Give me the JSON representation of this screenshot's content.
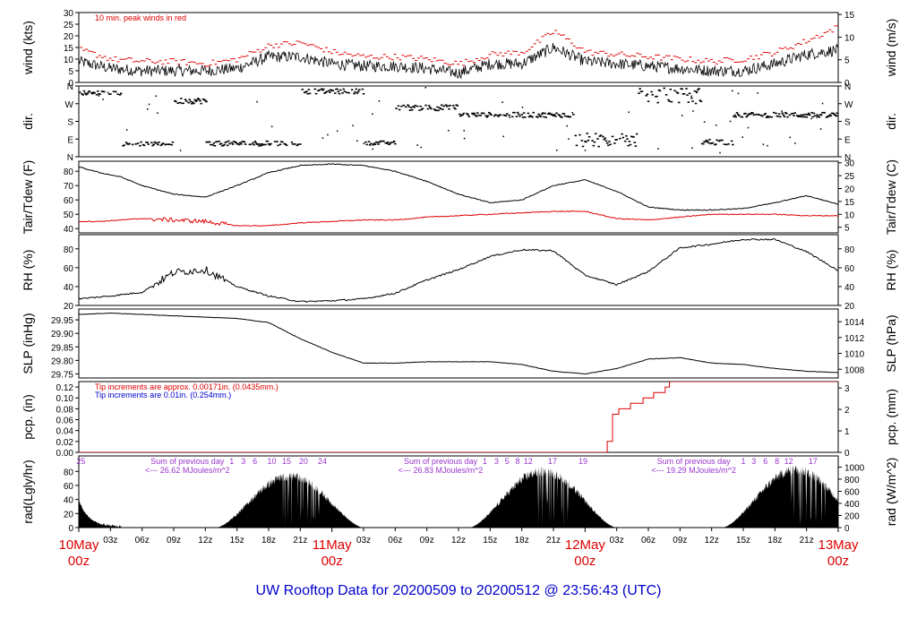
{
  "title": "UW Rooftop Data for 20200509  to  20200512 @ 23:56:43  (UTC)",
  "colors": {
    "title": "#0000cc",
    "date": "#dd0000",
    "tair": "#000000",
    "tdew": "#dd0000",
    "peak": "#dd0000",
    "note_red": "#dd0000",
    "note_blue": "#0000cc",
    "purple": "#9933cc"
  },
  "time": {
    "hour_ticks": [
      "03z",
      "06z",
      "09z",
      "12z",
      "15z",
      "18z",
      "21z"
    ],
    "days": [
      {
        "date": "10May",
        "z": "00z"
      },
      {
        "date": "11May",
        "z": "00z"
      },
      {
        "date": "12May",
        "z": "00z"
      },
      {
        "date": "13May",
        "z": "00z"
      }
    ]
  },
  "chart_data": [
    {
      "id": "wind",
      "type": "line",
      "ylabel": "wind (kts)",
      "ylabel_right": "wind (m/s)",
      "ylim": [
        0,
        30
      ],
      "yticks": [
        "0",
        "5",
        "10",
        "15",
        "20",
        "25",
        "30"
      ],
      "ylim_right": [
        0,
        15.43
      ],
      "yticks_right": [
        "0",
        "5",
        "10",
        "15"
      ],
      "annotation": "10 min. peak winds in red",
      "series": [
        {
          "x": [
            0,
            3,
            6,
            9,
            12,
            15,
            18,
            21,
            24,
            27,
            30,
            33,
            36,
            39,
            42,
            45,
            48,
            51,
            54,
            57,
            60,
            63,
            66,
            69,
            72
          ],
          "values": [
            9,
            6,
            5,
            5,
            5,
            6,
            11,
            11,
            8,
            7,
            7,
            6,
            4,
            8,
            8,
            15,
            9,
            8,
            7,
            6,
            5,
            5,
            8,
            12,
            14
          ]
        }
      ],
      "peaks": {
        "x": [
          0,
          3,
          6,
          9,
          12,
          15,
          18,
          21,
          24,
          27,
          30,
          33,
          36,
          39,
          42,
          45,
          48,
          51,
          54,
          57,
          60,
          63,
          66,
          69,
          72
        ],
        "values": [
          14,
          10,
          9,
          9,
          8,
          10,
          16,
          17,
          13,
          11,
          11,
          10,
          8,
          12,
          13,
          22,
          13,
          12,
          11,
          10,
          9,
          10,
          13,
          18,
          24
        ]
      }
    },
    {
      "id": "dir",
      "type": "scatter",
      "ylabel": "dir.",
      "ylabel_right": "dir.",
      "ylim": [
        0,
        360
      ],
      "yticks": [
        "N",
        "E",
        "S",
        "W",
        "N"
      ],
      "yticks_right": [
        "N",
        "E",
        "S",
        "W",
        "N"
      ],
      "segments": [
        {
          "x": [
            0,
            4
          ],
          "y": [
            315,
            335
          ]
        },
        {
          "x": [
            4,
            9
          ],
          "y": [
            55,
            75
          ]
        },
        {
          "x": [
            9,
            12
          ],
          "y": [
            270,
            300
          ]
        },
        {
          "x": [
            12,
            21
          ],
          "y": [
            55,
            80
          ]
        },
        {
          "x": [
            21,
            27
          ],
          "y": [
            320,
            345
          ]
        },
        {
          "x": [
            27,
            30
          ],
          "y": [
            60,
            80
          ]
        },
        {
          "x": [
            30,
            36
          ],
          "y": [
            235,
            265
          ]
        },
        {
          "x": [
            36,
            47
          ],
          "y": [
            200,
            225
          ]
        },
        {
          "x": [
            47,
            53
          ],
          "y": [
            50,
            120
          ]
        },
        {
          "x": [
            53,
            59
          ],
          "y": [
            270,
            350
          ]
        },
        {
          "x": [
            59,
            62
          ],
          "y": [
            60,
            90
          ]
        },
        {
          "x": [
            62,
            72
          ],
          "y": [
            200,
            225
          ]
        }
      ]
    },
    {
      "id": "temp",
      "type": "line",
      "ylabel": "Tair/Tdew (F)",
      "ylabel_right": "Tair/Tdew (C)",
      "ylim": [
        37,
        87
      ],
      "yticks": [
        "40",
        "50",
        "60",
        "70",
        "80"
      ],
      "ylim_right": [
        2.8,
        30.6
      ],
      "yticks_right": [
        "5",
        "10",
        "15",
        "20",
        "25",
        "30"
      ],
      "series": [
        {
          "name": "Tair",
          "x": [
            0,
            2,
            4,
            6,
            9,
            12,
            15,
            18,
            21,
            24,
            27,
            30,
            33,
            36,
            39,
            42,
            45,
            48,
            51,
            54,
            57,
            60,
            63,
            66,
            69,
            72
          ],
          "values": [
            83,
            79,
            76,
            70,
            64,
            62,
            70,
            79,
            84,
            85,
            84,
            80,
            73,
            64,
            58,
            60,
            70,
            74,
            66,
            55,
            53,
            53,
            54,
            58,
            63,
            57
          ]
        },
        {
          "name": "Tdew",
          "x": [
            0,
            2,
            4,
            6,
            9,
            12,
            15,
            18,
            21,
            24,
            27,
            30,
            33,
            36,
            39,
            42,
            45,
            48,
            51,
            54,
            57,
            60,
            63,
            66,
            69,
            72
          ],
          "values": [
            45,
            45,
            46,
            47,
            46,
            45,
            42,
            42,
            44,
            45,
            46,
            46,
            48,
            49,
            50,
            51,
            52,
            52,
            47,
            46,
            48,
            50,
            50,
            50,
            49,
            49
          ]
        }
      ]
    },
    {
      "id": "rh",
      "type": "line",
      "ylabel": "RH (%)",
      "ylabel_right": "RH (%)",
      "ylim": [
        20,
        95
      ],
      "yticks": [
        "20",
        "40",
        "60",
        "80"
      ],
      "yticks_right": [
        "20",
        "40",
        "60",
        "80"
      ],
      "series": [
        {
          "x": [
            0,
            3,
            6,
            9,
            12,
            15,
            18,
            21,
            24,
            27,
            30,
            33,
            36,
            39,
            42,
            45,
            48,
            51,
            54,
            57,
            60,
            63,
            66,
            69,
            72
          ],
          "values": [
            27,
            30,
            34,
            55,
            58,
            40,
            30,
            24,
            25,
            27,
            33,
            47,
            58,
            72,
            79,
            78,
            52,
            42,
            56,
            81,
            85,
            90,
            90,
            77,
            57
          ]
        }
      ]
    },
    {
      "id": "slp",
      "type": "line",
      "ylabel": "SLP (inHg)",
      "ylabel_right": "SLP (hPa)",
      "ylim": [
        29.735,
        29.99
      ],
      "yticks": [
        "29.75",
        "29.80",
        "29.85",
        "29.90",
        "29.95"
      ],
      "ylim_right": [
        1006.9,
        1015.6
      ],
      "yticks_right": [
        "1008",
        "1010",
        "1012",
        "1014"
      ],
      "series": [
        {
          "x": [
            0,
            3,
            6,
            9,
            12,
            15,
            18,
            21,
            24,
            27,
            30,
            33,
            36,
            39,
            42,
            45,
            48,
            51,
            54,
            57,
            60,
            63,
            66,
            69,
            72
          ],
          "values": [
            29.97,
            29.975,
            29.97,
            29.965,
            29.96,
            29.955,
            29.94,
            29.88,
            29.83,
            29.79,
            29.79,
            29.795,
            29.795,
            29.795,
            29.785,
            29.76,
            29.75,
            29.77,
            29.805,
            29.81,
            29.79,
            29.785,
            29.77,
            29.76,
            29.755
          ]
        }
      ]
    },
    {
      "id": "pcp",
      "type": "line",
      "ylabel": "pcp. (in)",
      "ylabel_right": "pcp. (mm)",
      "ylim": [
        0,
        0.13
      ],
      "yticks": [
        "0.00",
        "0.02",
        "0.04",
        "0.06",
        "0.08",
        "0.10",
        "0.12"
      ],
      "ylim_right": [
        0,
        3.3
      ],
      "yticks_right": [
        "0",
        "1",
        "2",
        "3"
      ],
      "notes": [
        "Tip increments are approx. 0.00171in. (0.0435mm.)",
        "Tip increments are 0.01in. (0.254mm.)"
      ],
      "series": [
        {
          "x": [
            0,
            49.7,
            50.1,
            50.6,
            51.2,
            52.3,
            53.5,
            54.5,
            55.6,
            56.0,
            72
          ],
          "values": [
            0,
            0,
            0.02,
            0.07,
            0.08,
            0.09,
            0.1,
            0.11,
            0.12,
            0.13,
            0.13
          ]
        }
      ]
    },
    {
      "id": "rad",
      "type": "area",
      "ylabel": "rad(Lgly/hr)",
      "ylabel_right": "rad (W/m^2)",
      "ylim": [
        0,
        102
      ],
      "yticks": [
        "0",
        "20",
        "40",
        "60",
        "80"
      ],
      "ylim_right": [
        0,
        1185
      ],
      "yticks_right": [
        "0",
        "200",
        "400",
        "600",
        "800",
        "1000"
      ],
      "day_sums": [
        {
          "x": 3.8,
          "label": "Sum of previous day",
          "value": "<--- 26.62 MJoules/m^2"
        },
        {
          "x": 27.8,
          "label": "Sum of previous day",
          "value": "<--- 26.83 MJoules/m^2"
        },
        {
          "x": 51.8,
          "label": "Sum of previous day",
          "value": "<--- 19.29 MJoules/m^2"
        }
      ],
      "hour_labels": [
        {
          "x": 0.2,
          "t": "25"
        },
        {
          "x": 14.5,
          "t": "1"
        },
        {
          "x": 15.6,
          "t": "3"
        },
        {
          "x": 16.7,
          "t": "6"
        },
        {
          "x": 18.3,
          "t": "10"
        },
        {
          "x": 19.7,
          "t": "15"
        },
        {
          "x": 21.3,
          "t": "20"
        },
        {
          "x": 23.1,
          "t": "24"
        },
        {
          "x": 38.5,
          "t": "1"
        },
        {
          "x": 39.6,
          "t": "3"
        },
        {
          "x": 40.6,
          "t": "5"
        },
        {
          "x": 41.6,
          "t": "8"
        },
        {
          "x": 42.6,
          "t": "12"
        },
        {
          "x": 44.9,
          "t": "17"
        },
        {
          "x": 47.8,
          "t": "19"
        },
        {
          "x": 63.0,
          "t": "1"
        },
        {
          "x": 64.0,
          "t": "3"
        },
        {
          "x": 65.1,
          "t": "6"
        },
        {
          "x": 66.2,
          "t": "8"
        },
        {
          "x": 67.3,
          "t": "12"
        },
        {
          "x": 69.6,
          "t": "17"
        }
      ],
      "days": [
        {
          "start": 13,
          "end": 27,
          "peak": 80
        },
        {
          "start": 37,
          "end": 51,
          "peak": 88
        },
        {
          "start": 61,
          "end": 75,
          "peak": 90
        }
      ],
      "night_tail": {
        "start": 0,
        "value": 38
      }
    }
  ]
}
